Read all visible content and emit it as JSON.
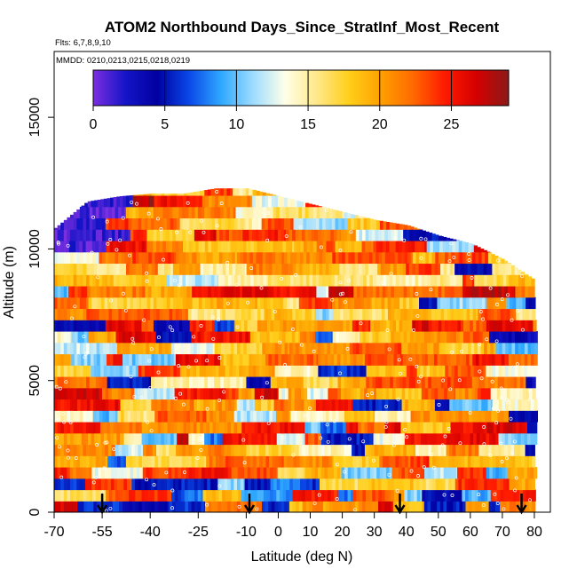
{
  "chart_data": {
    "type": "heatmap",
    "title": "ATOM2 Northbound Days_Since_StratInf_Most_Recent",
    "subtitle_flights": "Flts: 6,7,8,9,10",
    "annotation_dates": "MMDD: 0210,0213,0215,0218,0219",
    "xlabel": "Latitude (deg N)",
    "ylabel": "Altitude (m)",
    "xlim": [
      -70,
      85
    ],
    "ylim": [
      0,
      17500
    ],
    "x_ticks": [
      -70,
      -55,
      -40,
      -25,
      -10,
      0,
      10,
      20,
      30,
      40,
      50,
      60,
      70,
      80
    ],
    "x_tick_labels": [
      "-70",
      "-55",
      "-40",
      "-25",
      "-10",
      "0",
      "10",
      "20",
      "30",
      "40",
      "50",
      "60",
      "70",
      "80"
    ],
    "y_ticks": [
      0,
      5000,
      10000,
      15000
    ],
    "y_tick_labels": [
      "0",
      "5000",
      "10000",
      "15000"
    ],
    "colorbar": {
      "range": [
        0,
        29
      ],
      "ticks": [
        0,
        5,
        10,
        15,
        20,
        25
      ],
      "tick_labels": [
        "0",
        "5",
        "10",
        "15",
        "20",
        "25"
      ],
      "colors": [
        "#7b2fe0",
        "#1515c8",
        "#0000a0",
        "#0a48e8",
        "#2ea8ff",
        "#9ddcff",
        "#ffffe8",
        "#ffe88a",
        "#ffcf1a",
        "#ffa000",
        "#ff6a00",
        "#ff1a00",
        "#d40000",
        "#8b1a1a"
      ]
    },
    "profile_markers_lat": [
      -55,
      -9,
      38,
      76
    ],
    "domain_lat_range": [
      -70,
      80
    ],
    "top_altitude_envelope": {
      "lat": [
        -70,
        -60,
        -50,
        -40,
        -30,
        -20,
        -12,
        -10,
        0,
        10,
        20,
        30,
        40,
        50,
        60,
        70,
        80
      ],
      "alt": [
        10800,
        11800,
        12000,
        12100,
        12100,
        12300,
        12300,
        12300,
        12000,
        11700,
        11400,
        11100,
        10900,
        10500,
        10200,
        9600,
        8800
      ]
    }
  }
}
